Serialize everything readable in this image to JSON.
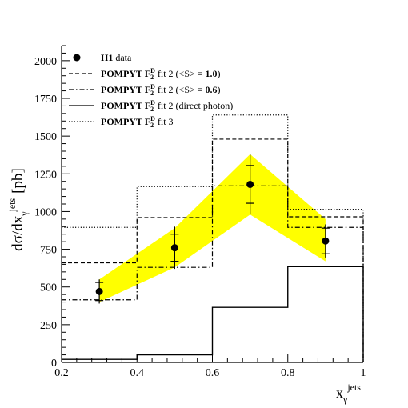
{
  "chart_data": {
    "type": "line",
    "xlabel": "x",
    "xlabel_sub": "γ",
    "xlabel_sup": "jets",
    "ylabel_main": "dσ/dx",
    "ylabel_sub": "γ",
    "ylabel_sup": "jets",
    "ylabel_unit": "[pb]",
    "xlim": [
      0.2,
      1.0
    ],
    "ylim": [
      0,
      2100
    ],
    "x_ticks": [
      "0.2",
      "0.4",
      "0.6",
      "0.8",
      "1"
    ],
    "x_tick_values": [
      0.2,
      0.4,
      0.6,
      0.8,
      1.0
    ],
    "y_ticks": [
      "0",
      "250",
      "500",
      "750",
      "1000",
      "1250",
      "1500",
      "1750",
      "2000"
    ],
    "y_tick_values": [
      0,
      250,
      500,
      750,
      1000,
      1250,
      1500,
      1750,
      2000
    ],
    "legend_position": "top-left",
    "bin_edges": [
      0.2,
      0.4,
      0.6,
      0.8,
      1.0
    ],
    "data": {
      "label": "H1 data",
      "x": [
        0.3,
        0.5,
        0.7,
        0.9
      ],
      "y": [
        470,
        760,
        1180,
        805
      ],
      "stat_err": [
        60,
        90,
        125,
        85
      ],
      "tot_err": [
        80,
        140,
        200,
        110
      ]
    },
    "band": {
      "color": "#ffff00",
      "x": [
        0.3,
        0.5,
        0.7,
        0.9
      ],
      "lower": [
        400,
        630,
        980,
        670
      ],
      "upper": [
        550,
        890,
        1380,
        950
      ]
    },
    "series": [
      {
        "name": "fit 2 (<S> = 1.0)",
        "style": "dashed",
        "values": [
          660,
          960,
          1480,
          965
        ]
      },
      {
        "name": "fit 2 (<S> = 0.6)",
        "style": "dashdot",
        "values": [
          415,
          630,
          1170,
          895
        ]
      },
      {
        "name": "fit 2 (direct photon)",
        "style": "solid",
        "values": [
          20,
          50,
          365,
          635
        ]
      },
      {
        "name": "fit 3",
        "style": "dotted",
        "values": [
          895,
          1165,
          1640,
          1015
        ]
      }
    ],
    "legend": [
      {
        "marker": "dot",
        "bold": "H1",
        "rest": " data"
      },
      {
        "marker": "dashed",
        "bold": "POMPYT F",
        "sub": "2",
        "sup": "D",
        "rest": " fit 2 (<S> = ",
        "boldnum": "1.0",
        "tail": ")"
      },
      {
        "marker": "dashdot",
        "bold": "POMPYT F",
        "sub": "2",
        "sup": "D",
        "rest": " fit 2 (<S> = ",
        "boldnum": "0.6",
        "tail": ")"
      },
      {
        "marker": "solid",
        "bold": "POMPYT F",
        "sub": "2",
        "sup": "D",
        "rest": " fit 2 (direct photon)"
      },
      {
        "marker": "dotted",
        "bold": "POMPYT F",
        "sub": "2",
        "sup": "D",
        "rest": " fit 3"
      }
    ]
  }
}
